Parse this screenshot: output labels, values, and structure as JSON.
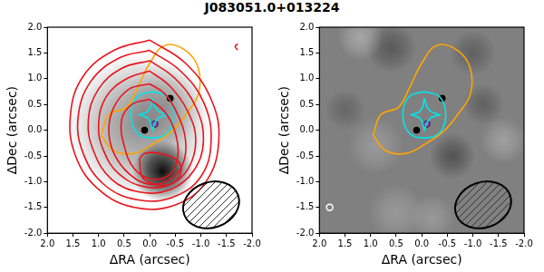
{
  "title": "J083051.0+013224",
  "chart_data": [
    {
      "type": "contour_map",
      "x_label": "ΔRA (arcsec)",
      "y_label": "ΔDec (arcsec)",
      "xlim": [
        2.0,
        -2.0
      ],
      "ylim": [
        -2.0,
        2.0
      ],
      "xticks": [
        {
          "value": 2.0,
          "label": "2.0"
        },
        {
          "value": 1.5,
          "label": "1.5"
        },
        {
          "value": 1.0,
          "label": "1.0"
        },
        {
          "value": 0.5,
          "label": "0.5"
        },
        {
          "value": 0.0,
          "label": "0.0"
        },
        {
          "value": -0.5,
          "label": "-0.5"
        },
        {
          "value": -1.0,
          "label": "-1.0"
        },
        {
          "value": -1.5,
          "label": "-1.5"
        },
        {
          "value": -2.0,
          "label": "-2.0"
        }
      ],
      "yticks": [
        {
          "value": -2.0,
          "label": "-2.0"
        },
        {
          "value": -1.5,
          "label": "-1.5"
        },
        {
          "value": -1.0,
          "label": "-1.0"
        },
        {
          "value": -0.5,
          "label": "-0.5"
        },
        {
          "value": 0.0,
          "label": "0.0"
        },
        {
          "value": 0.5,
          "label": "0.5"
        },
        {
          "value": 1.0,
          "label": "1.0"
        },
        {
          "value": 1.5,
          "label": "1.5"
        },
        {
          "value": 2.0,
          "label": "2.0"
        }
      ],
      "grid": false,
      "image": {
        "base": 0.0,
        "blobs": [
          {
            "x": -0.25,
            "y": -0.8,
            "size": 0.6,
            "level": 0.95
          },
          {
            "x": 0.2,
            "y": 0.1,
            "size": 1.4,
            "level": 0.45
          },
          {
            "x": -0.3,
            "y": 0.5,
            "size": 0.8,
            "level": 0.2
          }
        ]
      },
      "beam": {
        "x": -1.2,
        "y": -1.45,
        "major": 1.12,
        "minor": 0.88,
        "pa": 20
      },
      "series": [
        {
          "type": "line",
          "color": "#e8141c",
          "line_style": "smooth",
          "points": [
            [
              0.0,
              1.75
            ],
            [
              0.7,
              1.55
            ],
            [
              1.3,
              1.05
            ],
            [
              1.55,
              0.3
            ],
            [
              1.45,
              -0.5
            ],
            [
              1.0,
              -1.15
            ],
            [
              0.3,
              -1.5
            ],
            [
              -0.5,
              -1.45
            ],
            [
              -1.1,
              -1.0
            ],
            [
              -1.35,
              -0.2
            ],
            [
              -1.2,
              0.6
            ],
            [
              -0.7,
              1.3
            ],
            [
              0.0,
              1.75
            ]
          ]
        },
        {
          "type": "line",
          "color": "#e8141c",
          "line_style": "smooth",
          "points": [
            [
              0.0,
              1.55
            ],
            [
              0.6,
              1.4
            ],
            [
              1.15,
              0.95
            ],
            [
              1.4,
              0.25
            ],
            [
              1.3,
              -0.45
            ],
            [
              0.9,
              -1.05
            ],
            [
              0.25,
              -1.35
            ],
            [
              -0.45,
              -1.3
            ],
            [
              -1.0,
              -0.9
            ],
            [
              -1.2,
              -0.2
            ],
            [
              -1.05,
              0.55
            ],
            [
              -0.6,
              1.15
            ],
            [
              0.0,
              1.55
            ]
          ]
        },
        {
          "type": "line",
          "color": "#e8141c",
          "line_style": "smooth",
          "points": [
            [
              0.0,
              1.35
            ],
            [
              0.55,
              1.2
            ],
            [
              1.0,
              0.8
            ],
            [
              1.2,
              0.2
            ],
            [
              1.1,
              -0.4
            ],
            [
              0.75,
              -0.95
            ],
            [
              0.2,
              -1.2
            ],
            [
              -0.4,
              -1.15
            ],
            [
              -0.85,
              -0.8
            ],
            [
              -1.05,
              -0.2
            ],
            [
              -0.9,
              0.45
            ],
            [
              -0.5,
              1.0
            ],
            [
              0.0,
              1.35
            ]
          ]
        },
        {
          "type": "line",
          "color": "#e8141c",
          "line_style": "smooth",
          "points": [
            [
              0.0,
              1.15
            ],
            [
              0.45,
              1.0
            ],
            [
              0.85,
              0.65
            ],
            [
              1.0,
              0.1
            ],
            [
              0.9,
              -0.4
            ],
            [
              0.6,
              -0.85
            ],
            [
              0.1,
              -1.1
            ],
            [
              -0.4,
              -1.05
            ],
            [
              -0.75,
              -0.75
            ],
            [
              -0.9,
              -0.2
            ],
            [
              -0.75,
              0.35
            ],
            [
              -0.4,
              0.85
            ],
            [
              0.0,
              1.15
            ]
          ]
        },
        {
          "type": "line",
          "color": "#e8141c",
          "line_style": "smooth",
          "points": [
            [
              0.0,
              0.9
            ],
            [
              0.4,
              0.8
            ],
            [
              0.7,
              0.45
            ],
            [
              0.8,
              0.0
            ],
            [
              0.7,
              -0.45
            ],
            [
              0.4,
              -0.85
            ],
            [
              0.0,
              -1.05
            ],
            [
              -0.4,
              -0.95
            ],
            [
              -0.65,
              -0.65
            ],
            [
              -0.7,
              -0.2
            ],
            [
              -0.55,
              0.3
            ],
            [
              -0.3,
              0.7
            ],
            [
              0.0,
              0.9
            ]
          ]
        },
        {
          "type": "line",
          "color": "#e8141c",
          "line_style": "smooth",
          "points": [
            [
              0.0,
              0.6
            ],
            [
              0.35,
              0.5
            ],
            [
              0.55,
              0.2
            ],
            [
              0.5,
              -0.3
            ],
            [
              0.3,
              -0.75
            ],
            [
              -0.05,
              -0.95
            ],
            [
              -0.4,
              -0.85
            ],
            [
              -0.55,
              -0.5
            ],
            [
              -0.5,
              -0.05
            ],
            [
              -0.3,
              0.35
            ],
            [
              0.0,
              0.6
            ]
          ]
        },
        {
          "type": "line",
          "color": "#e8141c",
          "line_style": "smooth",
          "points": [
            [
              0.2,
              -0.55
            ],
            [
              0.1,
              -0.45
            ],
            [
              -0.2,
              -0.45
            ],
            [
              -0.55,
              -0.6
            ],
            [
              -0.6,
              -0.85
            ],
            [
              -0.4,
              -1.05
            ],
            [
              -0.1,
              -1.05
            ],
            [
              0.15,
              -0.9
            ],
            [
              0.2,
              -0.55
            ]
          ]
        },
        {
          "type": "line",
          "color": "#e8141c",
          "line_style": "smooth",
          "points": [
            [
              -1.72,
              1.68
            ],
            [
              -1.67,
              1.62
            ],
            [
              -1.72,
              1.56
            ]
          ]
        },
        {
          "type": "line",
          "color": "#ffa500",
          "line_style": "smooth",
          "points": [
            [
              0.95,
              -0.1
            ],
            [
              0.8,
              0.3
            ],
            [
              0.45,
              0.45
            ],
            [
              0.25,
              0.8
            ],
            [
              0.0,
              1.3
            ],
            [
              -0.3,
              1.65
            ],
            [
              -0.7,
              1.55
            ],
            [
              -0.95,
              1.2
            ],
            [
              -0.95,
              0.7
            ],
            [
              -0.7,
              0.3
            ],
            [
              -0.45,
              0.0
            ],
            [
              -0.1,
              -0.25
            ],
            [
              0.3,
              -0.45
            ],
            [
              0.7,
              -0.4
            ],
            [
              0.95,
              -0.1
            ]
          ]
        },
        {
          "type": "line",
          "color": "#00e5ee",
          "line_style": "smooth",
          "points": [
            [
              -0.05,
              0.75
            ],
            [
              0.25,
              0.65
            ],
            [
              0.37,
              0.3
            ],
            [
              0.25,
              -0.05
            ],
            [
              -0.05,
              -0.15
            ],
            [
              -0.35,
              -0.05
            ],
            [
              -0.47,
              0.3
            ],
            [
              -0.35,
              0.65
            ],
            [
              -0.05,
              0.75
            ]
          ]
        },
        {
          "type": "line",
          "color": "#00e5ee",
          "line_style": "solid",
          "points": [
            [
              -0.05,
              0.62
            ],
            [
              -0.02,
              0.45
            ],
            [
              0.05,
              0.35
            ],
            [
              0.2,
              0.3
            ],
            [
              0.05,
              0.25
            ],
            [
              -0.02,
              0.15
            ],
            [
              -0.05,
              0.0
            ],
            [
              -0.1,
              0.15
            ],
            [
              -0.18,
              0.25
            ],
            [
              -0.35,
              0.3
            ],
            [
              -0.18,
              0.36
            ],
            [
              -0.1,
              0.45
            ],
            [
              -0.05,
              0.62
            ]
          ]
        },
        {
          "type": "scatter",
          "color": "#000000",
          "marker": "circle",
          "points": [
            [
              0.1,
              0.0
            ],
            [
              -0.4,
              0.62
            ]
          ]
        },
        {
          "type": "scatter",
          "color": "#b040c0",
          "marker": "circle",
          "points": [
            [
              -0.1,
              0.12
            ]
          ]
        }
      ]
    },
    {
      "type": "contour_map",
      "x_label": "ΔRA (arcsec)",
      "y_label": "ΔDec (arcsec)",
      "xlim": [
        2.0,
        -2.0
      ],
      "ylim": [
        -2.0,
        2.0
      ],
      "xticks": [
        {
          "value": 2.0,
          "label": "2.0"
        },
        {
          "value": 1.5,
          "label": "1.5"
        },
        {
          "value": 1.0,
          "label": "1.0"
        },
        {
          "value": 0.5,
          "label": "0.5"
        },
        {
          "value": 0.0,
          "label": "0.0"
        },
        {
          "value": -0.5,
          "label": "-0.5"
        },
        {
          "value": -1.0,
          "label": "-1.0"
        },
        {
          "value": -1.5,
          "label": "-1.5"
        },
        {
          "value": -2.0,
          "label": "-2.0"
        }
      ],
      "yticks": [
        {
          "value": -2.0,
          "label": "-2.0"
        },
        {
          "value": -1.5,
          "label": "-1.5"
        },
        {
          "value": -1.0,
          "label": "-1.0"
        },
        {
          "value": -0.5,
          "label": "-0.5"
        },
        {
          "value": 0.0,
          "label": "0.0"
        },
        {
          "value": 0.5,
          "label": "0.5"
        },
        {
          "value": 1.0,
          "label": "1.0"
        },
        {
          "value": 1.5,
          "label": "1.5"
        },
        {
          "value": 2.0,
          "label": "2.0"
        }
      ],
      "grid": false,
      "image": {
        "base": 0.5,
        "blobs": [
          {
            "x": 0.6,
            "y": 1.6,
            "size": 0.5,
            "level": 0.3
          },
          {
            "x": -0.6,
            "y": -0.5,
            "size": 0.45,
            "level": 0.35
          },
          {
            "x": -1.0,
            "y": 1.5,
            "size": 0.45,
            "level": 0.25
          },
          {
            "x": 1.5,
            "y": 0.4,
            "size": 0.4,
            "level": 0.2
          },
          {
            "x": -1.2,
            "y": 0.5,
            "size": 0.4,
            "level": 0.25
          },
          {
            "x": 1.2,
            "y": 1.8,
            "size": 0.45,
            "level": -0.3
          },
          {
            "x": 0.9,
            "y": -0.3,
            "size": 0.55,
            "level": -0.2
          },
          {
            "x": -1.6,
            "y": -0.2,
            "size": 0.45,
            "level": -0.25
          },
          {
            "x": 0.5,
            "y": -1.6,
            "size": 0.55,
            "level": -0.2
          },
          {
            "x": -0.2,
            "y": -1.7,
            "size": 0.45,
            "level": -0.2
          }
        ]
      },
      "beam": {
        "x": -1.2,
        "y": -1.45,
        "major": 1.12,
        "minor": 0.88,
        "pa": 20
      },
      "series": [
        {
          "type": "line",
          "color": "#ffa500",
          "line_style": "smooth",
          "points": [
            [
              0.95,
              -0.1
            ],
            [
              0.8,
              0.3
            ],
            [
              0.45,
              0.45
            ],
            [
              0.25,
              0.8
            ],
            [
              0.0,
              1.3
            ],
            [
              -0.3,
              1.65
            ],
            [
              -0.7,
              1.55
            ],
            [
              -0.95,
              1.2
            ],
            [
              -0.95,
              0.7
            ],
            [
              -0.7,
              0.3
            ],
            [
              -0.45,
              0.0
            ],
            [
              -0.1,
              -0.25
            ],
            [
              0.3,
              -0.45
            ],
            [
              0.7,
              -0.4
            ],
            [
              0.95,
              -0.1
            ]
          ]
        },
        {
          "type": "line",
          "color": "#00e5ee",
          "line_style": "smooth",
          "points": [
            [
              -0.05,
              0.75
            ],
            [
              0.25,
              0.65
            ],
            [
              0.37,
              0.3
            ],
            [
              0.25,
              -0.05
            ],
            [
              -0.05,
              -0.15
            ],
            [
              -0.35,
              -0.05
            ],
            [
              -0.47,
              0.3
            ],
            [
              -0.35,
              0.65
            ],
            [
              -0.05,
              0.75
            ]
          ]
        },
        {
          "type": "line",
          "color": "#00e5ee",
          "line_style": "solid",
          "points": [
            [
              -0.05,
              0.62
            ],
            [
              -0.02,
              0.45
            ],
            [
              0.05,
              0.35
            ],
            [
              0.2,
              0.3
            ],
            [
              0.05,
              0.25
            ],
            [
              -0.02,
              0.15
            ],
            [
              -0.05,
              0.0
            ],
            [
              -0.1,
              0.15
            ],
            [
              -0.18,
              0.25
            ],
            [
              -0.35,
              0.3
            ],
            [
              -0.18,
              0.36
            ],
            [
              -0.1,
              0.45
            ],
            [
              -0.05,
              0.62
            ]
          ]
        },
        {
          "type": "scatter",
          "color": "#000000",
          "marker": "circle",
          "points": [
            [
              0.1,
              0.0
            ],
            [
              -0.4,
              0.62
            ]
          ]
        },
        {
          "type": "scatter",
          "color": "#b040c0",
          "marker": "circle",
          "points": [
            [
              -0.1,
              0.12
            ]
          ]
        },
        {
          "type": "scatter",
          "color": "#ffffff",
          "marker": "open_circle",
          "points": [
            [
              1.8,
              -1.5
            ]
          ]
        }
      ]
    }
  ]
}
